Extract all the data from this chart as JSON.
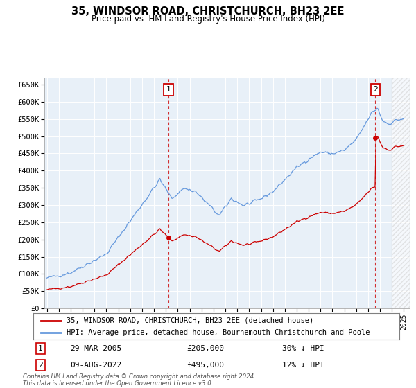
{
  "title": "35, WINDSOR ROAD, CHRISTCHURCH, BH23 2EE",
  "subtitle": "Price paid vs. HM Land Registry's House Price Index (HPI)",
  "legend_line1": "35, WINDSOR ROAD, CHRISTCHURCH, BH23 2EE (detached house)",
  "legend_line2": "HPI: Average price, detached house, Bournemouth Christchurch and Poole",
  "transaction1_date": "29-MAR-2005",
  "transaction1_price": "£205,000",
  "transaction1_hpi": "30% ↓ HPI",
  "transaction1_year": 2005.23,
  "transaction1_value": 205000,
  "transaction2_date": "09-AUG-2022",
  "transaction2_price": "£495,000",
  "transaction2_hpi": "12% ↓ HPI",
  "transaction2_year": 2022.61,
  "transaction2_value": 495000,
  "hpi_color": "#6699DD",
  "price_color": "#CC0000",
  "annotation_box_color": "#CC0000",
  "background_color": "#E8F0F8",
  "ylim": [
    0,
    670000
  ],
  "xlim_start": 1994.8,
  "xlim_end": 2025.5,
  "footer": "Contains HM Land Registry data © Crown copyright and database right 2024.\nThis data is licensed under the Open Government Licence v3.0.",
  "yticks": [
    0,
    50000,
    100000,
    150000,
    200000,
    250000,
    300000,
    350000,
    400000,
    450000,
    500000,
    550000,
    600000,
    650000
  ],
  "xticks": [
    1995,
    1996,
    1997,
    1998,
    1999,
    2000,
    2001,
    2002,
    2003,
    2004,
    2005,
    2006,
    2007,
    2008,
    2009,
    2010,
    2011,
    2012,
    2013,
    2014,
    2015,
    2016,
    2017,
    2018,
    2019,
    2020,
    2021,
    2022,
    2023,
    2024,
    2025
  ]
}
